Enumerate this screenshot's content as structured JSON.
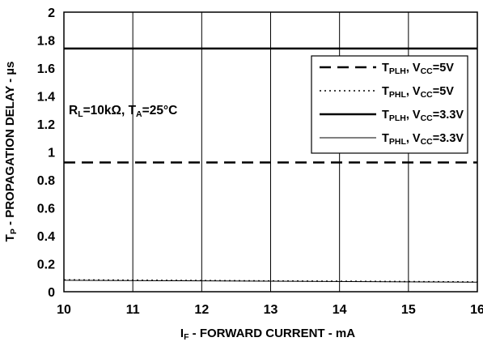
{
  "chart_data": {
    "type": "line",
    "x": [
      10,
      16
    ],
    "xlim": [
      10,
      16
    ],
    "ylim": [
      0,
      2
    ],
    "xticks": [
      "10",
      "11",
      "12",
      "13",
      "14",
      "15",
      "16"
    ],
    "yticks": [
      "0",
      "0.2",
      "0.4",
      "0.6",
      "0.8",
      "1",
      "1.2",
      "1.4",
      "1.6",
      "1.8",
      "2"
    ],
    "grid": "vertical",
    "xlabel": {
      "main": "I",
      "sub": "F",
      "rest": " - FORWARD CURRENT - mA"
    },
    "ylabel": {
      "main": "T",
      "sub": "P",
      "rest": " - PROPAGATION DELAY - µs"
    },
    "annotation": {
      "r_main": "R",
      "r_sub": "L",
      "r_rest": "=10kΩ, ",
      "t_main": "T",
      "t_sub": "A",
      "t_rest": "=25°C"
    },
    "legend_position": "top-right",
    "series": [
      {
        "name": "TPLH, VCC=5V",
        "t": "T",
        "t_sub": "PLH",
        "v": ", V",
        "v_sub": "CC",
        "rest": "=5V",
        "style": "dashed",
        "width": 2.5,
        "values": [
          0.925,
          0.925
        ]
      },
      {
        "name": "TPHL, VCC=5V",
        "t": "T",
        "t_sub": "PHL",
        "v": ", V",
        "v_sub": "CC",
        "rest": "=5V",
        "style": "dotted",
        "width": 1.5,
        "values": [
          0.085,
          0.07
        ]
      },
      {
        "name": "TPLH, VCC=3.3V",
        "t": "T",
        "t_sub": "PLH",
        "v": ", V",
        "v_sub": "CC",
        "rest": "=3.3V",
        "style": "solid",
        "width": 2.5,
        "values": [
          1.74,
          1.74
        ]
      },
      {
        "name": "TPHL, VCC=3.3V",
        "t": "T",
        "t_sub": "PHL",
        "v": ", V",
        "v_sub": "CC",
        "rest": "=3.3V",
        "style": "solid",
        "width": 1,
        "values": [
          0.082,
          0.068
        ]
      }
    ]
  }
}
